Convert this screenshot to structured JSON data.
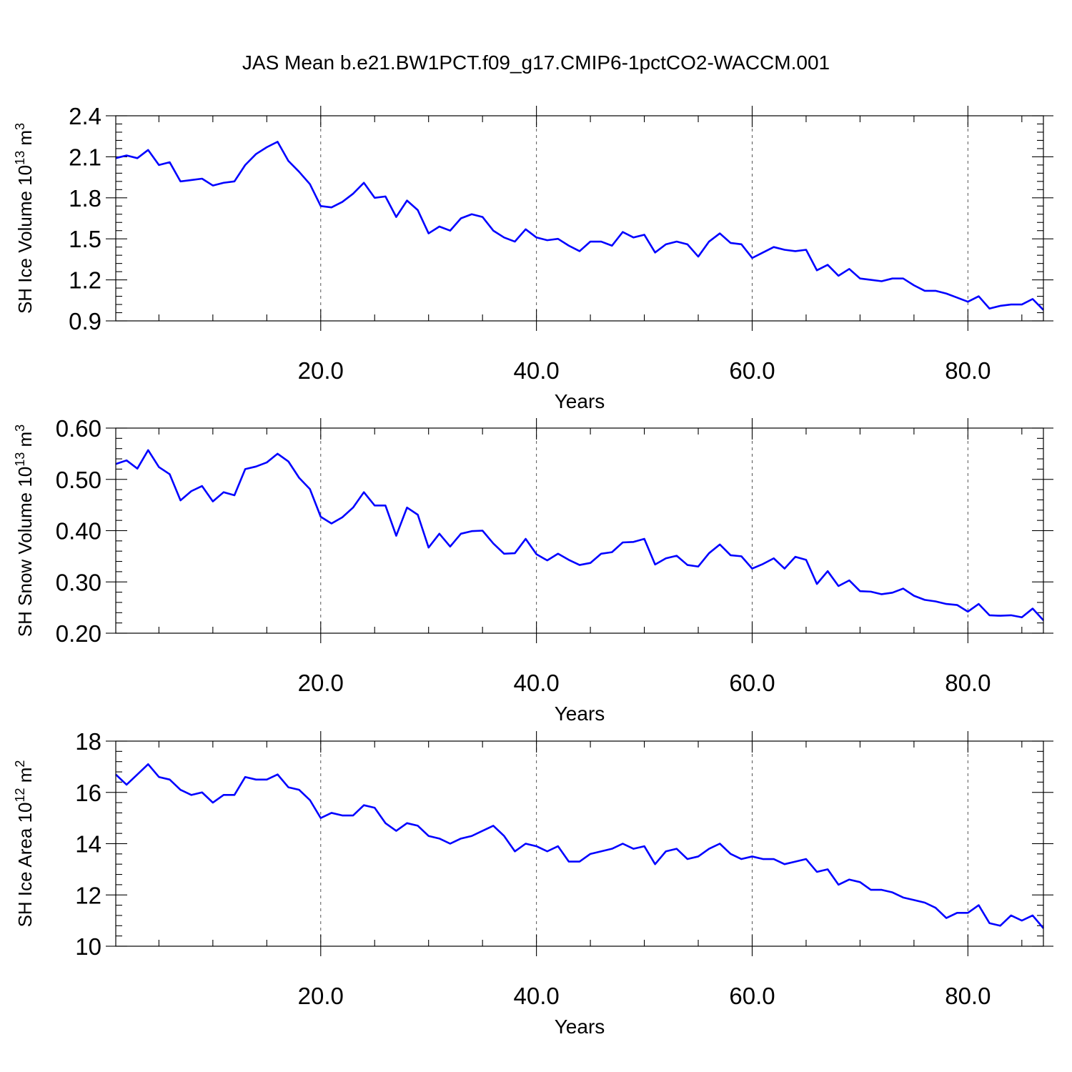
{
  "title": "JAS Mean b.e21.BW1PCT.f09_g17.CMIP6-1pctCO2-WACCM.001",
  "colors": {
    "series": "#0000ff",
    "axes": "#000000",
    "grid": "#555555"
  },
  "chart_data": [
    {
      "type": "line",
      "ylabel": "SH Ice Volume 10",
      "ylabel_exp": "13",
      "ylabel_unit": " m",
      "ylabel_unit_exp": "3",
      "xlabel": "Years",
      "xlim": [
        1,
        87
      ],
      "ylim": [
        0.9,
        2.4
      ],
      "x_ticks": [
        20,
        40,
        60,
        80
      ],
      "x_tick_labels": [
        "20.0",
        "40.0",
        "60.0",
        "80.0"
      ],
      "y_ticks": [
        0.9,
        1.2,
        1.5,
        1.8,
        2.1,
        2.4
      ],
      "y_tick_labels": [
        "0.9",
        "1.2",
        "1.5",
        "1.8",
        "2.1",
        "2.4"
      ],
      "grid": "vertical dashed at major x ticks",
      "series": [
        {
          "values": [
            2.09,
            2.11,
            2.09,
            2.15,
            2.04,
            2.06,
            1.92,
            1.93,
            1.94,
            1.89,
            1.91,
            1.92,
            2.04,
            2.12,
            2.17,
            2.21,
            2.07,
            1.99,
            1.9,
            1.74,
            1.73,
            1.77,
            1.83,
            1.91,
            1.8,
            1.81,
            1.66,
            1.78,
            1.71,
            1.54,
            1.59,
            1.56,
            1.65,
            1.68,
            1.66,
            1.56,
            1.51,
            1.48,
            1.57,
            1.51,
            1.49,
            1.5,
            1.45,
            1.41,
            1.48,
            1.48,
            1.45,
            1.55,
            1.51,
            1.53,
            1.4,
            1.46,
            1.48,
            1.46,
            1.37,
            1.48,
            1.54,
            1.47,
            1.46,
            1.36,
            1.4,
            1.44,
            1.42,
            1.41,
            1.42,
            1.27,
            1.31,
            1.23,
            1.28,
            1.21,
            1.2,
            1.19,
            1.21,
            1.21,
            1.16,
            1.12,
            1.12,
            1.1,
            1.07,
            1.04,
            1.08,
            0.99,
            1.01,
            1.02,
            1.02,
            1.06,
            0.98
          ]
        }
      ]
    },
    {
      "type": "line",
      "ylabel": "SH Snow Volume 10",
      "ylabel_exp": "13",
      "ylabel_unit": " m",
      "ylabel_unit_exp": "3",
      "xlabel": "Years",
      "xlim": [
        1,
        87
      ],
      "ylim": [
        0.2,
        0.6
      ],
      "x_ticks": [
        20,
        40,
        60,
        80
      ],
      "x_tick_labels": [
        "20.0",
        "40.0",
        "60.0",
        "80.0"
      ],
      "y_ticks": [
        0.2,
        0.3,
        0.4,
        0.5,
        0.6
      ],
      "y_tick_labels": [
        "0.20",
        "0.30",
        "0.40",
        "0.50",
        "0.60"
      ],
      "grid": "vertical dashed at major x ticks",
      "series": [
        {
          "values": [
            0.53,
            0.537,
            0.521,
            0.557,
            0.524,
            0.51,
            0.459,
            0.477,
            0.487,
            0.457,
            0.475,
            0.469,
            0.52,
            0.525,
            0.533,
            0.55,
            0.535,
            0.503,
            0.481,
            0.427,
            0.414,
            0.426,
            0.445,
            0.475,
            0.449,
            0.449,
            0.39,
            0.445,
            0.431,
            0.367,
            0.394,
            0.369,
            0.394,
            0.399,
            0.4,
            0.375,
            0.355,
            0.356,
            0.384,
            0.354,
            0.342,
            0.355,
            0.343,
            0.333,
            0.337,
            0.355,
            0.358,
            0.377,
            0.378,
            0.384,
            0.334,
            0.346,
            0.351,
            0.333,
            0.33,
            0.356,
            0.373,
            0.352,
            0.35,
            0.326,
            0.335,
            0.346,
            0.326,
            0.349,
            0.343,
            0.296,
            0.321,
            0.292,
            0.303,
            0.282,
            0.281,
            0.276,
            0.279,
            0.287,
            0.273,
            0.265,
            0.262,
            0.257,
            0.255,
            0.242,
            0.257,
            0.235,
            0.234,
            0.235,
            0.231,
            0.248,
            0.225
          ]
        }
      ]
    },
    {
      "type": "line",
      "ylabel": "SH Ice Area 10",
      "ylabel_exp": "12",
      "ylabel_unit": " m",
      "ylabel_unit_exp": "2",
      "xlabel": "Years",
      "xlim": [
        1,
        87
      ],
      "ylim": [
        10,
        18
      ],
      "x_ticks": [
        20,
        40,
        60,
        80
      ],
      "x_tick_labels": [
        "20.0",
        "40.0",
        "60.0",
        "80.0"
      ],
      "y_ticks": [
        10,
        12,
        14,
        16,
        18
      ],
      "y_tick_labels": [
        "10",
        "12",
        "14",
        "16",
        "18"
      ],
      "grid": "vertical dashed at major x ticks",
      "series": [
        {
          "values": [
            16.7,
            16.3,
            16.7,
            17.1,
            16.6,
            16.5,
            16.1,
            15.9,
            16.0,
            15.6,
            15.9,
            15.9,
            16.6,
            16.5,
            16.5,
            16.7,
            16.2,
            16.1,
            15.7,
            15.0,
            15.2,
            15.1,
            15.1,
            15.5,
            15.4,
            14.8,
            14.5,
            14.8,
            14.7,
            14.3,
            14.2,
            14.0,
            14.2,
            14.3,
            14.5,
            14.7,
            14.3,
            13.7,
            14.0,
            13.9,
            13.7,
            13.9,
            13.3,
            13.3,
            13.6,
            13.7,
            13.8,
            14.0,
            13.8,
            13.9,
            13.2,
            13.7,
            13.8,
            13.4,
            13.5,
            13.8,
            14.0,
            13.6,
            13.4,
            13.5,
            13.4,
            13.4,
            13.2,
            13.3,
            13.4,
            12.9,
            13.0,
            12.4,
            12.6,
            12.5,
            12.2,
            12.2,
            12.1,
            11.9,
            11.8,
            11.7,
            11.5,
            11.1,
            11.3,
            11.3,
            11.6,
            10.9,
            10.8,
            11.2,
            11.0,
            11.2,
            10.7
          ]
        }
      ]
    }
  ]
}
